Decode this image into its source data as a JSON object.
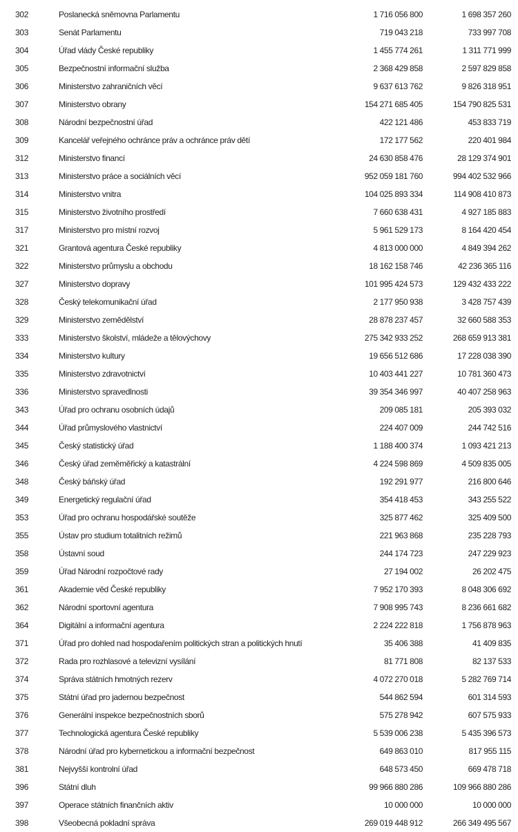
{
  "table": {
    "rows": [
      {
        "code": "302",
        "name": "Poslanecká sněmovna Parlamentu",
        "v1": "1 716 056 800",
        "v2": "1 698 357 260"
      },
      {
        "code": "303",
        "name": "Senát Parlamentu",
        "v1": "719 043 218",
        "v2": "733 997 708"
      },
      {
        "code": "304",
        "name": "Úřad vlády České republiky",
        "v1": "1 455 774 261",
        "v2": "1 311 771 999"
      },
      {
        "code": "305",
        "name": "Bezpečnostní informační služba",
        "v1": "2 368 429 858",
        "v2": "2 597 829 858"
      },
      {
        "code": "306",
        "name": "Ministerstvo zahraničních věcí",
        "v1": "9 637 613 762",
        "v2": "9 826 318 951"
      },
      {
        "code": "307",
        "name": "Ministerstvo obrany",
        "v1": "154 271 685 405",
        "v2": "154 790 825 531"
      },
      {
        "code": "308",
        "name": "Národní bezpečnostní úřad",
        "v1": "422 121 486",
        "v2": "453 833 719"
      },
      {
        "code": "309",
        "name": "Kancelář veřejného ochránce práv a ochránce práv dětí",
        "v1": "172 177 562",
        "v2": "220 401 984"
      },
      {
        "code": "312",
        "name": "Ministerstvo financí",
        "v1": "24 630 858 476",
        "v2": "28 129 374 901"
      },
      {
        "code": "313",
        "name": "Ministerstvo práce a sociálních věcí",
        "v1": "952 059 181 760",
        "v2": "994 402 532 966"
      },
      {
        "code": "314",
        "name": "Ministerstvo vnitra",
        "v1": "104 025 893 334",
        "v2": "114 908 410 873"
      },
      {
        "code": "315",
        "name": "Ministerstvo životního prostředí",
        "v1": "7 660 638 431",
        "v2": "4 927 185 883"
      },
      {
        "code": "317",
        "name": "Ministerstvo pro místní rozvoj",
        "v1": "5 961 529 173",
        "v2": "8 164 420 454"
      },
      {
        "code": "321",
        "name": "Grantová agentura České republiky",
        "v1": "4 813 000 000",
        "v2": "4 849 394 262"
      },
      {
        "code": "322",
        "name": "Ministerstvo průmyslu a obchodu",
        "v1": "18 162 158 746",
        "v2": "42 236 365 116"
      },
      {
        "code": "327",
        "name": "Ministerstvo dopravy",
        "v1": "101 995 424 573",
        "v2": "129 432 433 222"
      },
      {
        "code": "328",
        "name": "Český telekomunikační úřad",
        "v1": "2 177 950 938",
        "v2": "3 428 757 439"
      },
      {
        "code": "329",
        "name": "Ministerstvo zemědělství",
        "v1": "28 878 237 457",
        "v2": "32 660 588 353"
      },
      {
        "code": "333",
        "name": "Ministerstvo školství, mládeže a tělovýchovy",
        "v1": "275 342 933 252",
        "v2": "268 659 913 381"
      },
      {
        "code": "334",
        "name": "Ministerstvo kultury",
        "v1": "19 656 512 686",
        "v2": "17 228 038 390"
      },
      {
        "code": "335",
        "name": "Ministerstvo zdravotnictví",
        "v1": "10 403 441 227",
        "v2": "10 781 360 473"
      },
      {
        "code": "336",
        "name": "Ministerstvo spravedlnosti",
        "v1": "39 354 346 997",
        "v2": "40 407 258 963"
      },
      {
        "code": "343",
        "name": "Úřad pro ochranu osobních údajů",
        "v1": "209 085 181",
        "v2": "205 393 032"
      },
      {
        "code": "344",
        "name": "Úřad průmyslového vlastnictví",
        "v1": "224 407 009",
        "v2": "244 742 516"
      },
      {
        "code": "345",
        "name": "Český statistický úřad",
        "v1": "1 188 400 374",
        "v2": "1 093 421 213"
      },
      {
        "code": "346",
        "name": "Český úřad zeměměřický a katastrální",
        "v1": "4 224 598 869",
        "v2": "4 509 835 005"
      },
      {
        "code": "348",
        "name": "Český báňský úřad",
        "v1": "192 291 977",
        "v2": "216 800 646"
      },
      {
        "code": "349",
        "name": "Energetický regulační úřad",
        "v1": "354 418 453",
        "v2": "343 255 522"
      },
      {
        "code": "353",
        "name": "Úřad pro ochranu hospodářské soutěže",
        "v1": "325 877 462",
        "v2": "325 409 500"
      },
      {
        "code": "355",
        "name": "Ústav pro studium totalitních režimů",
        "v1": "221 963 868",
        "v2": "235 228 793"
      },
      {
        "code": "358",
        "name": "Ústavní soud",
        "v1": "244 174 723",
        "v2": "247 229 923"
      },
      {
        "code": "359",
        "name": "Úřad Národní rozpočtové rady",
        "v1": "27 194 002",
        "v2": "26 202 475"
      },
      {
        "code": "361",
        "name": "Akademie věd České republiky",
        "v1": "7 952 170 393",
        "v2": "8 048 306 692"
      },
      {
        "code": "362",
        "name": "Národní sportovní agentura",
        "v1": "7 908 995 743",
        "v2": "8 236 661 682"
      },
      {
        "code": "364",
        "name": "Digitální a informační agentura",
        "v1": "2 224 222 818",
        "v2": "1 756 878 963"
      },
      {
        "code": "371",
        "name": "Úřad pro dohled nad hospodařením politických stran a politických hnutí",
        "v1": "35 406 388",
        "v2": "41 409 835"
      },
      {
        "code": "372",
        "name": "Rada pro rozhlasové a televizní vysílání",
        "v1": "81 771 808",
        "v2": "82 137 533"
      },
      {
        "code": "374",
        "name": "Správa státních hmotných rezerv",
        "v1": "4 072 270 018",
        "v2": "5 282 769 714"
      },
      {
        "code": "375",
        "name": "Státní úřad pro jadernou bezpečnost",
        "v1": "544 862 594",
        "v2": "601 314 593"
      },
      {
        "code": "376",
        "name": "Generální inspekce bezpečnostních sborů",
        "v1": "575 278 942",
        "v2": "607 575 933"
      },
      {
        "code": "377",
        "name": "Technologická agentura České republiky",
        "v1": "5 539 006 238",
        "v2": "5 435 396 573"
      },
      {
        "code": "378",
        "name": "Národní úřad pro kybernetickou a informační bezpečnost",
        "v1": "649 863 010",
        "v2": "817 955 115"
      },
      {
        "code": "381",
        "name": "Nejvyšší kontrolní úřad",
        "v1": "648 573 450",
        "v2": "669 478 718"
      },
      {
        "code": "396",
        "name": "Státní dluh",
        "v1": "99 966 880 286",
        "v2": "109 966 880 286"
      },
      {
        "code": "397",
        "name": "Operace státních finančních aktiv",
        "v1": "10 000 000",
        "v2": "10 000 000"
      },
      {
        "code": "398",
        "name": "Všeobecná pokladní správa",
        "v1": "269 019 448 912",
        "v2": "266 349 495 567"
      }
    ]
  }
}
